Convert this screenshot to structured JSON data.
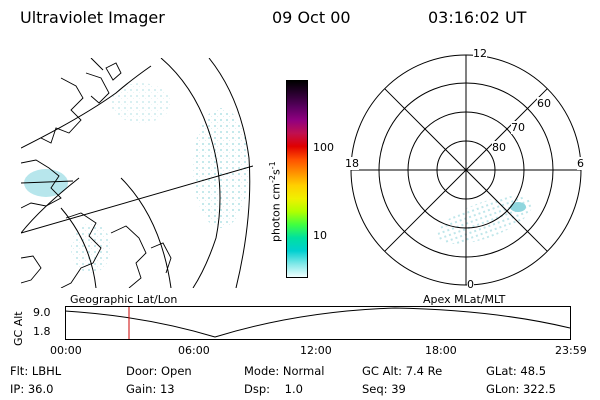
{
  "header": {
    "title": "Ultraviolet Imager",
    "date": "09 Oct 00",
    "time": "03:16:02 UT"
  },
  "colorbar": {
    "unit_label": "photon cm",
    "unit_exp1": "-2",
    "unit_mid": "s",
    "unit_exp2": "-1",
    "ticks": [
      "100",
      "10"
    ],
    "colors": [
      "#000000",
      "#2a0030",
      "#5a0060",
      "#900080",
      "#c01050",
      "#e00000",
      "#ff5000",
      "#ff9000",
      "#ffd000",
      "#f0f000",
      "#b0ff00",
      "#40ff40",
      "#00e0a0",
      "#00d0d0",
      "#80e8e8",
      "#f0ffff"
    ]
  },
  "polar": {
    "mlt_labels": {
      "top": "12",
      "left": "18",
      "right": "6",
      "bottom": "0"
    },
    "lat_labels": [
      "60",
      "70",
      "80"
    ]
  },
  "strip": {
    "left_title": "Geographic Lat/Lon",
    "right_title": "Apex MLat/MLT",
    "ylabel": "GC Alt",
    "yticks": [
      "9.0",
      "1.8"
    ],
    "xticks": [
      "00:00",
      "06:00",
      "12:00",
      "18:00",
      "23:59"
    ],
    "marker_color": "#cc0000"
  },
  "info": {
    "row1": [
      {
        "key": "Flt:",
        "val": "LBHL"
      },
      {
        "key": "Door:",
        "val": "Open"
      },
      {
        "key": "Mode:",
        "val": "Normal"
      },
      {
        "key": "GC Alt:",
        "val": "7.4 Re"
      },
      {
        "key": "GLat:",
        "val": "48.5"
      }
    ],
    "row2": [
      {
        "key": "IP:",
        "val": "36.0"
      },
      {
        "key": "Gain:",
        "val": "13"
      },
      {
        "key": "Dsp:",
        "val": "1.0"
      },
      {
        "key": "Seq:",
        "val": "39"
      },
      {
        "key": "GLon:",
        "val": "322.5"
      }
    ]
  }
}
